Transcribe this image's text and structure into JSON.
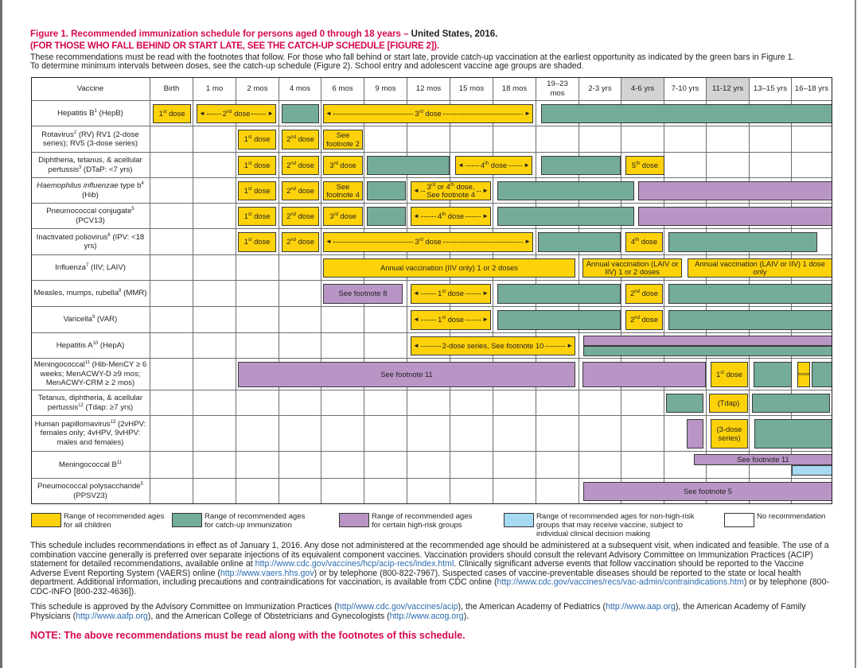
{
  "header": {
    "title_red": "Figure 1. Recommended immunization schedule for persons aged 0 through 18 years – ",
    "title_black": "United States, 2016.",
    "subtitle": "(FOR THOSE WHO FALL BEHIND OR START LATE, SEE THE CATCH-UP SCHEDULE [FIGURE 2]).",
    "intro_line1": "These recommendations must be read with the footnotes that follow. For those who fall behind or start late, provide catch-up vaccination at the earliest opportunity as indicated by the green bars in Figure 1.",
    "intro_line2": "To determine minimum intervals between doses, see the catch-up schedule (Figure 2). School entry and adolescent vaccine age groups are shaded."
  },
  "colors": {
    "recommended": "#fdd20a",
    "catch-up": "#74ac99",
    "high-risk": "#b995c6",
    "non-high-risk": "#a6d9f2",
    "title_red": "#d6094b",
    "shaded_header": "#d1d3d4"
  },
  "table": {
    "vaccine_header": "Vaccine",
    "ages": [
      "Birth",
      "1 mo",
      "2 mos",
      "4 mos",
      "6 mos",
      "9 mos",
      "12 mos",
      "15 mos",
      "18 mos",
      "19–23 mos",
      "2-3 yrs",
      "4-6 yrs",
      "7-10 yrs",
      "11-12 yrs",
      "13–15 yrs",
      "16–18 yrs"
    ],
    "shaded_ages": [
      "4-6 yrs",
      "11-12 yrs"
    ],
    "rows": [
      {
        "name": "Hepatitis B",
        "fn": "1",
        "post": " (HepB)",
        "bars": [
          {
            "type": "recommended",
            "label": "1st dose",
            "from": "Birth",
            "to": "Birth"
          },
          {
            "type": "recommended",
            "label": "2nd dose",
            "arrows": true,
            "from": "1 mo",
            "to": "2 mos"
          },
          {
            "type": "catch-up",
            "label": "",
            "from": "4 mos",
            "to": "4 mos"
          },
          {
            "type": "recommended",
            "label": "3rd dose",
            "arrows": true,
            "from": "6 mos",
            "to": "18 mos"
          },
          {
            "type": "catch-up",
            "label": "",
            "from": "19–23 mos",
            "to": "16–18 yrs"
          }
        ]
      },
      {
        "name": "Rotavirus",
        "fn": "2",
        "post": " (RV) RV1 (2-dose series); RV5 (3-dose series)",
        "bars": [
          {
            "type": "recommended",
            "label": "1st dose",
            "from": "2 mos",
            "to": "2 mos"
          },
          {
            "type": "recommended",
            "label": "2nd dose",
            "from": "4 mos",
            "to": "4 mos"
          },
          {
            "type": "recommended",
            "label": "See footnote 2",
            "wrap": true,
            "from": "6 mos",
            "to": "6 mos"
          }
        ]
      },
      {
        "name": "Diphtheria, tetanus, & acellular pertussis",
        "fn": "3",
        "post": " (DTaP: <7 yrs)",
        "bars": [
          {
            "type": "recommended",
            "label": "1st dose",
            "from": "2 mos",
            "to": "2 mos"
          },
          {
            "type": "recommended",
            "label": "2nd dose",
            "from": "4 mos",
            "to": "4 mos"
          },
          {
            "type": "recommended",
            "label": "3rd dose",
            "from": "6 mos",
            "to": "6 mos"
          },
          {
            "type": "catch-up",
            "label": "",
            "from": "9 mos",
            "to": "12 mos"
          },
          {
            "type": "recommended",
            "label": "4th dose",
            "arrows": true,
            "from": "15 mos",
            "to": "18 mos"
          },
          {
            "type": "catch-up",
            "label": "",
            "from": "19–23 mos",
            "to": "2-3 yrs"
          },
          {
            "type": "recommended",
            "label": "5th dose",
            "from": "4-6 yrs",
            "to": "4-6 yrs"
          }
        ]
      },
      {
        "ital": "Haemophilus influenzae",
        "name": " type b",
        "fn": "4",
        "post": " (Hib)",
        "bars": [
          {
            "type": "recommended",
            "label": "1st dose",
            "from": "2 mos",
            "to": "2 mos"
          },
          {
            "type": "recommended",
            "label": "2nd dose",
            "from": "4 mos",
            "to": "4 mos"
          },
          {
            "type": "recommended",
            "label": "See footnote 4",
            "wrap": true,
            "from": "6 mos",
            "to": "6 mos"
          },
          {
            "type": "catch-up",
            "label": "",
            "from": "9 mos",
            "to": "9 mos"
          },
          {
            "type": "recommended",
            "label": "3rd or 4th dose,",
            "label2": "See footnote 4",
            "arrows": true,
            "from": "12 mos",
            "to": "15 mos"
          },
          {
            "type": "catch-up",
            "label": "",
            "from": "18 mos",
            "to": "4-6 yrs"
          },
          {
            "type": "high-risk",
            "label": "",
            "from": "4-6 yrs",
            "to": "16–18 yrs"
          }
        ]
      },
      {
        "name": "Pneumococcal conjugate",
        "fn": "5",
        "post": " (PCV13)",
        "bars": [
          {
            "type": "recommended",
            "label": "1st dose",
            "from": "2 mos",
            "to": "2 mos"
          },
          {
            "type": "recommended",
            "label": "2nd dose",
            "from": "4 mos",
            "to": "4 mos"
          },
          {
            "type": "recommended",
            "label": "3rd dose",
            "from": "6 mos",
            "to": "6 mos"
          },
          {
            "type": "catch-up",
            "label": "",
            "from": "9 mos",
            "to": "9 mos"
          },
          {
            "type": "recommended",
            "label": "4th dose",
            "arrows": true,
            "from": "12 mos",
            "to": "15 mos"
          },
          {
            "type": "catch-up",
            "label": "",
            "from": "18 mos",
            "to": "4-6 yrs"
          },
          {
            "type": "high-risk",
            "label": "",
            "from": "4-6 yrs",
            "to": "16–18 yrs"
          }
        ]
      },
      {
        "name": "Inactivated poliovirus",
        "fn": "6",
        "post": " (IPV: <18 yrs)",
        "bars": [
          {
            "type": "recommended",
            "label": "1st dose",
            "from": "2 mos",
            "to": "2 mos"
          },
          {
            "type": "recommended",
            "label": "2nd dose",
            "from": "4 mos",
            "to": "4 mos"
          },
          {
            "type": "recommended",
            "label": "3rd dose",
            "arrows": true,
            "from": "6 mos",
            "to": "18 mos"
          },
          {
            "type": "catch-up",
            "label": "",
            "from": "19–23 mos",
            "to": "2-3 yrs"
          },
          {
            "type": "recommended",
            "label": "4th dose",
            "from": "4-6 yrs",
            "to": "4-6 yrs"
          },
          {
            "type": "catch-up",
            "label": "",
            "from": "7-10 yrs",
            "to": "16–18 yrs"
          }
        ]
      },
      {
        "name": "Influenza",
        "fn": "7",
        "post": " (IIV; LAIV)",
        "bars": [
          {
            "type": "recommended",
            "label": "Annual vaccination (IIV only) 1 or 2 doses",
            "from": "6 mos",
            "to": "19–23 mos"
          },
          {
            "type": "recommended",
            "label": "Annual vaccination (LAIV or IIV) 1 or 2 doses",
            "wrap": true,
            "from": "2-3 yrs",
            "to": "7-10 yrs"
          },
          {
            "type": "recommended",
            "label": "Annual vaccination (LAIV or IIV) 1 dose only",
            "wrap": true,
            "from": "7-10 yrs",
            "to": "16–18 yrs"
          }
        ]
      },
      {
        "name": "Measles, mumps, rubella",
        "fn": "8",
        "post": " (MMR)",
        "bars": [
          {
            "type": "high-risk",
            "label": "See footnote 8",
            "from": "6 mos",
            "to": "9 mos"
          },
          {
            "type": "recommended",
            "label": "1st dose",
            "arrows": true,
            "from": "12 mos",
            "to": "15 mos"
          },
          {
            "type": "catch-up",
            "label": "",
            "from": "18 mos",
            "to": "2-3 yrs"
          },
          {
            "type": "recommended",
            "label": "2nd dose",
            "from": "4-6 yrs",
            "to": "4-6 yrs"
          },
          {
            "type": "catch-up",
            "label": "",
            "from": "7-10 yrs",
            "to": "16–18 yrs"
          }
        ]
      },
      {
        "name": "Varicella",
        "fn": "9",
        "post": " (VAR)",
        "bars": [
          {
            "type": "recommended",
            "label": "1st dose",
            "arrows": true,
            "from": "12 mos",
            "to": "15 mos"
          },
          {
            "type": "catch-up",
            "label": "",
            "from": "18 mos",
            "to": "2-3 yrs"
          },
          {
            "type": "recommended",
            "label": "2nd dose",
            "from": "4-6 yrs",
            "to": "4-6 yrs"
          },
          {
            "type": "catch-up",
            "label": "",
            "from": "7-10 yrs",
            "to": "16–18 yrs"
          }
        ]
      },
      {
        "name": "Hepatitis A",
        "fn": "10",
        "post": " (HepA)",
        "bars": [
          {
            "type": "recommended",
            "label": "2-dose series, See footnote 10",
            "arrows": true,
            "from": "12 mos",
            "to": "19–23 mos"
          },
          {
            "type": "high-risk",
            "label": "",
            "from": "2-3 yrs",
            "to": "16–18 yrs"
          },
          {
            "type": "catch-up",
            "label": "",
            "from": "2-3 yrs",
            "to": "16–18 yrs"
          }
        ]
      },
      {
        "name": "Meningococcal",
        "fn": "11",
        "post": " (Hib-MenCY ≥ 6 weeks; MenACWY-D ≥9 mos; MenACWY-CRM ≥ 2 mos)",
        "bars": [
          {
            "type": "high-risk",
            "label": "See footnote 11",
            "from": "2 mos",
            "to": "19–23 mos"
          },
          {
            "type": "high-risk",
            "label": "",
            "from": "2-3 yrs",
            "to": "7-10 yrs"
          },
          {
            "type": "recommended",
            "label": "1st dose",
            "from": "11-12 yrs",
            "to": "11-12 yrs"
          },
          {
            "type": "catch-up",
            "label": "",
            "from": "13–15 yrs",
            "to": "13–15 yrs"
          },
          {
            "type": "recommended",
            "label": "Booster",
            "small": true,
            "from": "16–18 yrs",
            "to": "16–18 yrs"
          },
          {
            "type": "catch-up",
            "label": "",
            "from": "16–18 yrs",
            "to": "16–18 yrs"
          }
        ]
      },
      {
        "name": "Tetanus, diphtheria, & acellular pertussis",
        "fn": "12",
        "post": " (Tdap: ≥7 yrs)",
        "bars": [
          {
            "type": "catch-up",
            "label": "",
            "from": "7-10 yrs",
            "to": "7-10 yrs"
          },
          {
            "type": "recommended",
            "label": "(Tdap)",
            "from": "11-12 yrs",
            "to": "11-12 yrs"
          },
          {
            "type": "catch-up",
            "label": "",
            "from": "13–15 yrs",
            "to": "16–18 yrs"
          }
        ]
      },
      {
        "name": "Human papillomavirus",
        "fn": "13",
        "post": " (2vHPV: females only; 4vHPV, 9vHPV: males and females)",
        "bars": [
          {
            "type": "high-risk",
            "label": "",
            "from": "7-10 yrs",
            "to": "7-10 yrs"
          },
          {
            "type": "recommended",
            "label": "(3-dose series)",
            "wrap": true,
            "from": "11-12 yrs",
            "to": "11-12 yrs"
          },
          {
            "type": "catch-up",
            "label": "",
            "from": "13–15 yrs",
            "to": "16–18 yrs"
          }
        ]
      },
      {
        "name": "Meningococcal B",
        "fn": "11",
        "post": "",
        "bars": [
          {
            "type": "high-risk",
            "label": "See footnote 11",
            "from": "7-10 yrs",
            "to": "16–18 yrs"
          },
          {
            "type": "non-high-risk",
            "label": "",
            "from": "16–18 yrs",
            "to": "16–18 yrs"
          }
        ]
      },
      {
        "name": "Pneumococcal polysaccharide",
        "fn": "5",
        "post": " (PPSV23)",
        "bars": [
          {
            "type": "high-risk",
            "label": "See footnote 5",
            "from": "2-3 yrs",
            "to": "16–18 yrs"
          }
        ]
      }
    ]
  },
  "legend": [
    {
      "type": "recommended",
      "text": "Range of recommended ages for all children"
    },
    {
      "type": "catch-up",
      "text": "Range of recommended ages for catch-up immunization"
    },
    {
      "type": "high-risk",
      "text": "Range of recommended ages for certain high-risk  groups"
    },
    {
      "type": "non-high-risk",
      "text": "Range of recommended ages for non-high-risk groups that may receive vaccine, subject to individual clinical decision making"
    },
    {
      "type": "none",
      "text": "No recommendation"
    }
  ],
  "paragraphs": [
    [
      {
        "t": "This schedule includes recommendations in effect as of January 1, 2016. Any dose not administered at the recommended age should be administered at a subsequent visit, when indicated and feasible. The use of a combination vaccine generally is preferred over separate injections of its equivalent component vaccines. Vaccination providers should consult the relevant Advisory Committee on Immunization Practices (ACIP) statement for detailed recommendations, available online at "
      },
      {
        "t": "http://www.cdc.gov/vaccines/hcp/acip-recs/index.html",
        "link": true
      },
      {
        "t": ". Clinically significant adverse events that follow vaccination should be reported to the Vaccine Adverse Event Reporting System (VAERS) online ("
      },
      {
        "t": "http://www.vaers.hhs.gov",
        "link": true
      },
      {
        "t": ") or by telephone (800-822-7967). Suspected cases of vaccine-preventable diseases should be reported to the state or local health department. Additional information, including precautions and contraindications for vaccination, is available from CDC online ("
      },
      {
        "t": "http://www.cdc.gov/vaccines/recs/vac-admin/contraindications.htm",
        "link": true
      },
      {
        "t": ") or by telephone (800-CDC-INFO [800-232-4636])."
      }
    ],
    [
      {
        "t": "This schedule is approved by the Advisory Committee on Immunization Practices ("
      },
      {
        "t": "http//www.cdc.gov/vaccines/acip",
        "link": true
      },
      {
        "t": "), the American Academy of Pediatrics ("
      },
      {
        "t": "http://www.aap.org",
        "link": true
      },
      {
        "t": "), the American Academy of Family Physicians ("
      },
      {
        "t": "http://www.aafp.org",
        "link": true
      },
      {
        "t": "), and the American College of Obstetricians and Gynecologists ("
      },
      {
        "t": "http://www.acog.org",
        "link": true
      },
      {
        "t": ")."
      }
    ]
  ],
  "note": "NOTE: The above recommendations must be read along with the footnotes of this schedule."
}
